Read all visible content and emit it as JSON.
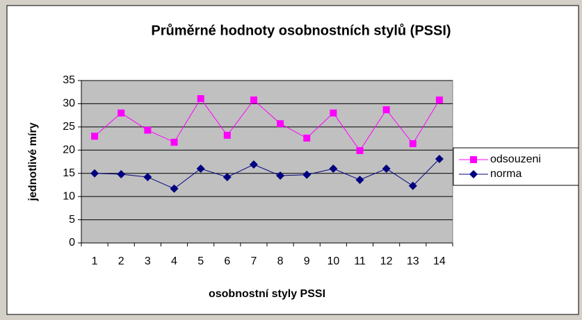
{
  "chart_data": {
    "type": "line",
    "title": "Průměrné hodnoty osobnostních stylů (PSSI)",
    "x_label": "osobnostní styly PSSI",
    "y_label": "jednotlivé míry",
    "categories": [
      "1",
      "2",
      "3",
      "4",
      "5",
      "6",
      "7",
      "8",
      "9",
      "10",
      "11",
      "12",
      "13",
      "14"
    ],
    "series": [
      {
        "name": "odsouzeni",
        "color": "#ff00ff",
        "marker": "square",
        "values": [
          23,
          28,
          24.3,
          21.7,
          31.1,
          23.2,
          30.8,
          25.7,
          22.6,
          28,
          19.9,
          28.7,
          21.4,
          30.8
        ]
      },
      {
        "name": "norma",
        "color": "#000080",
        "marker": "diamond",
        "values": [
          15,
          14.8,
          14.2,
          11.7,
          16,
          14.2,
          16.9,
          14.5,
          14.7,
          16,
          13.6,
          16,
          12.3,
          18.1
        ]
      }
    ],
    "ylim": [
      0,
      35
    ],
    "yticks": [
      0,
      5,
      10,
      15,
      20,
      25,
      30,
      35
    ],
    "grid": true,
    "legend": "right",
    "plot_background": "#c0c0c0"
  }
}
